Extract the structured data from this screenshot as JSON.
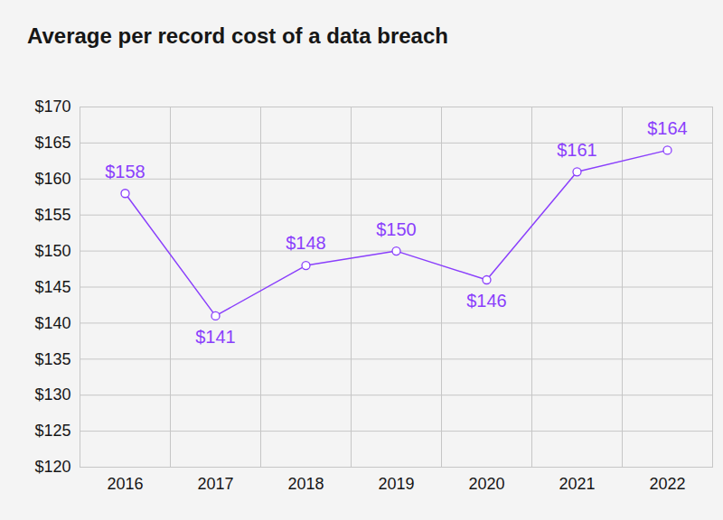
{
  "chart_data": {
    "type": "line",
    "title": "Average per record cost of a data breach",
    "categories": [
      "2016",
      "2017",
      "2018",
      "2019",
      "2020",
      "2021",
      "2022"
    ],
    "values": [
      158,
      141,
      148,
      150,
      146,
      161,
      164
    ],
    "value_labels": [
      "$158",
      "$141",
      "$148",
      "$150",
      "$146",
      "$161",
      "$164"
    ],
    "color": "#8a3ffc",
    "marker": "circle",
    "ylim": [
      120,
      170
    ],
    "yticks": [
      {
        "value": 120,
        "label": "$120"
      },
      {
        "value": 125,
        "label": "$125"
      },
      {
        "value": 130,
        "label": "$130"
      },
      {
        "value": 135,
        "label": "$135"
      },
      {
        "value": 140,
        "label": "$140"
      },
      {
        "value": 145,
        "label": "$145"
      },
      {
        "value": 150,
        "label": "$150"
      },
      {
        "value": 155,
        "label": "$155"
      },
      {
        "value": 160,
        "label": "$160"
      },
      {
        "value": 165,
        "label": "$165"
      },
      {
        "value": 170,
        "label": "$170"
      }
    ],
    "grid": true,
    "data_labels": true
  }
}
